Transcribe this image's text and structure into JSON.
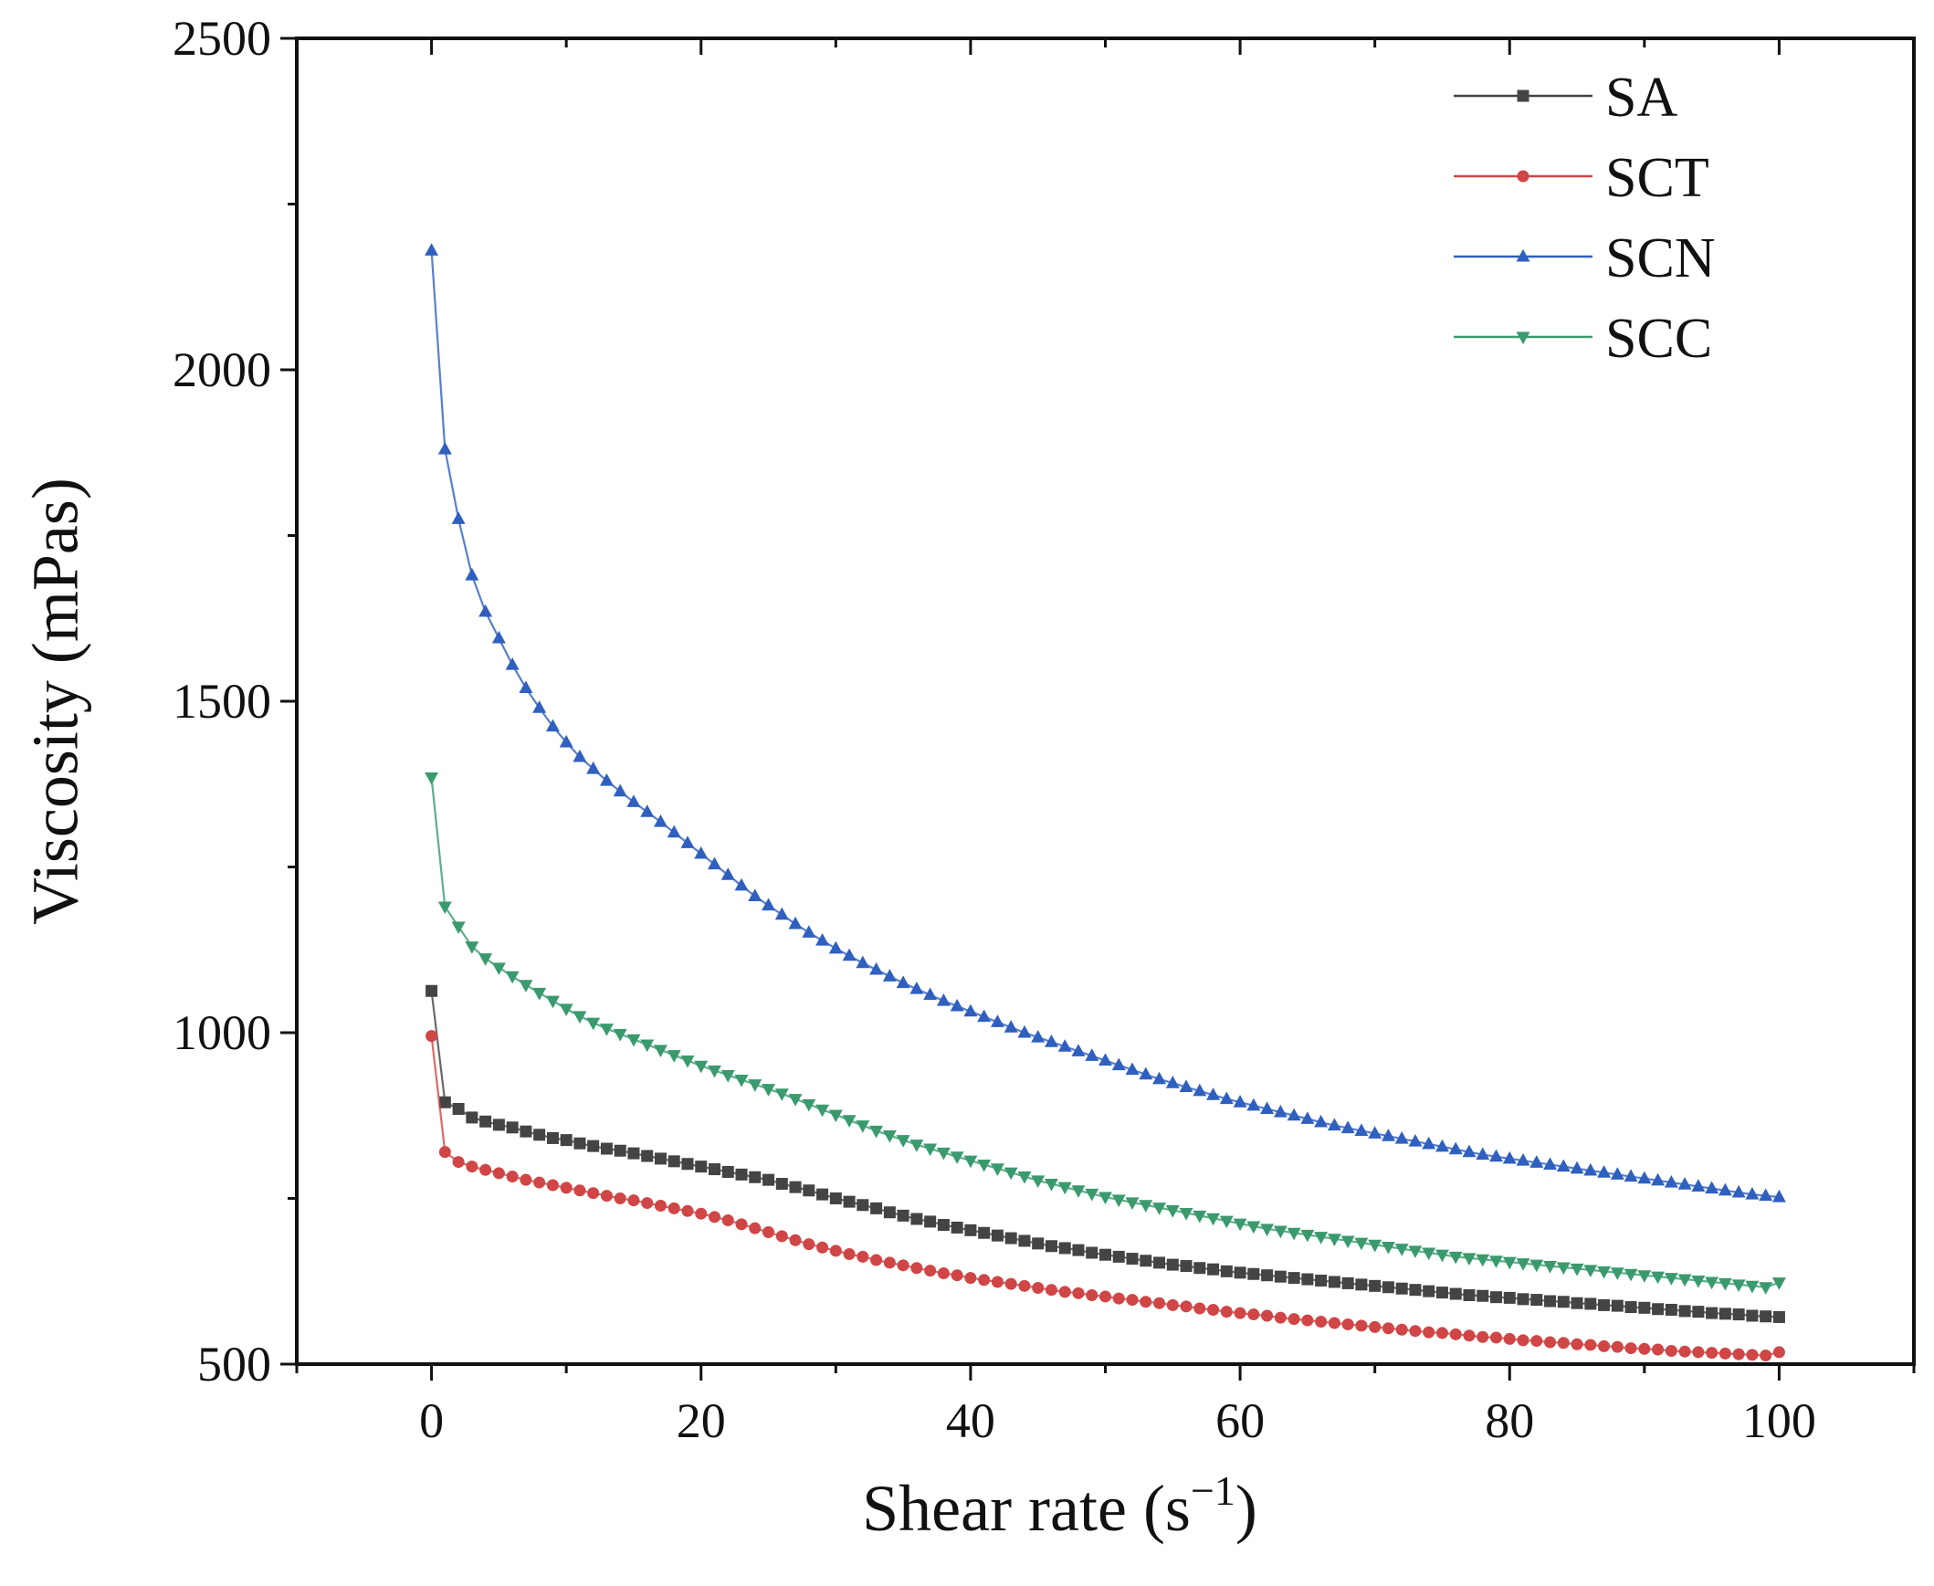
{
  "chart_data": {
    "type": "line",
    "title": "",
    "xlabel": "Shear rate (s",
    "xlabel_superscript": "−1",
    "xlabel_suffix": ")",
    "ylabel": "Viscosity (mPas)",
    "xlim": [
      -10,
      110
    ],
    "ylim": [
      500,
      2500
    ],
    "xticks": [
      0,
      20,
      40,
      60,
      80,
      100
    ],
    "yticks": [
      500,
      1000,
      1500,
      2000,
      2500
    ],
    "x": [
      0,
      1,
      2,
      3,
      4,
      5,
      6,
      7,
      8,
      9,
      10,
      11,
      12,
      13,
      14,
      15,
      16,
      17,
      18,
      19,
      20,
      21,
      22,
      23,
      24,
      25,
      26,
      27,
      28,
      29,
      30,
      31,
      32,
      33,
      34,
      35,
      36,
      37,
      38,
      39,
      40,
      41,
      42,
      43,
      44,
      45,
      46,
      47,
      48,
      49,
      50,
      51,
      52,
      53,
      54,
      55,
      56,
      57,
      58,
      59,
      60,
      61,
      62,
      63,
      64,
      65,
      66,
      67,
      68,
      69,
      70,
      71,
      72,
      73,
      74,
      75,
      76,
      77,
      78,
      79,
      80,
      81,
      82,
      83,
      84,
      85,
      86,
      87,
      88,
      89,
      90,
      91,
      92,
      93,
      94,
      95,
      96,
      97,
      98,
      99,
      100
    ],
    "series": [
      {
        "name": "SA",
        "color": "#444444",
        "marker": "square",
        "values": [
          1063,
          895,
          885,
          872,
          866,
          861,
          857,
          851,
          846,
          841,
          838,
          833,
          829,
          825,
          822,
          818,
          814,
          810,
          806,
          802,
          798,
          794,
          790,
          786,
          782,
          778,
          772,
          767,
          762,
          756,
          750,
          745,
          740,
          735,
          729,
          724,
          719,
          715,
          710,
          706,
          702,
          698,
          694,
          690,
          686,
          682,
          678,
          675,
          672,
          668,
          665,
          662,
          659,
          656,
          653,
          650,
          648,
          645,
          643,
          640,
          638,
          636,
          634,
          632,
          630,
          628,
          626,
          624,
          622,
          620,
          618,
          616,
          614,
          612,
          610,
          608,
          606,
          604,
          603,
          601,
          600,
          598,
          597,
          595,
          594,
          592,
          591,
          589,
          588,
          586,
          585,
          583,
          582,
          580,
          579,
          577,
          576,
          575,
          573,
          572,
          571
        ]
      },
      {
        "name": "SCT",
        "color": "#d04545",
        "marker": "circle",
        "values": [
          995,
          820,
          805,
          798,
          793,
          788,
          783,
          778,
          774,
          770,
          766,
          762,
          758,
          754,
          750,
          747,
          743,
          739,
          735,
          731,
          727,
          722,
          717,
          711,
          705,
          699,
          693,
          687,
          681,
          676,
          671,
          666,
          662,
          657,
          653,
          649,
          645,
          641,
          637,
          634,
          630,
          627,
          624,
          621,
          618,
          615,
          612,
          609,
          607,
          604,
          602,
          599,
          597,
          594,
          592,
          589,
          587,
          584,
          582,
          579,
          577,
          575,
          573,
          570,
          568,
          566,
          564,
          562,
          560,
          558,
          556,
          554,
          552,
          550,
          548,
          547,
          545,
          543,
          541,
          540,
          538,
          536,
          535,
          533,
          532,
          530,
          529,
          527,
          526,
          524,
          523,
          522,
          520,
          519,
          518,
          517,
          516,
          515,
          514,
          513,
          518
        ]
      },
      {
        "name": "SCN",
        "color": "#2f5fbf",
        "marker": "triangle-up",
        "values": [
          2180,
          1880,
          1775,
          1690,
          1635,
          1595,
          1555,
          1520,
          1490,
          1462,
          1438,
          1416,
          1398,
          1380,
          1364,
          1348,
          1333,
          1318,
          1302,
          1286,
          1270,
          1254,
          1238,
          1222,
          1206,
          1192,
          1178,
          1164,
          1151,
          1139,
          1127,
          1116,
          1105,
          1095,
          1085,
          1075,
          1066,
          1057,
          1048,
          1040,
          1032,
          1024,
          1016,
          1008,
          1000,
          993,
          986,
          979,
          972,
          965,
          958,
          951,
          944,
          937,
          930,
          924,
          918,
          912,
          906,
          900,
          895,
          890,
          885,
          880,
          875,
          870,
          865,
          860,
          856,
          852,
          848,
          844,
          840,
          836,
          832,
          828,
          824,
          820,
          816,
          813,
          810,
          807,
          804,
          801,
          798,
          795,
          792,
          789,
          786,
          783,
          780,
          777,
          774,
          771,
          768,
          765,
          762,
          759,
          756,
          754,
          752
        ]
      },
      {
        "name": "SCC",
        "color": "#3a9a6e",
        "marker": "triangle-down",
        "values": [
          1385,
          1190,
          1160,
          1130,
          1112,
          1098,
          1085,
          1072,
          1060,
          1048,
          1036,
          1025,
          1015,
          1006,
          998,
          990,
          982,
          974,
          966,
          958,
          950,
          943,
          936,
          929,
          922,
          915,
          908,
          900,
          892,
          884,
          876,
          868,
          860,
          852,
          845,
          838,
          831,
          825,
          819,
          813,
          807,
          801,
          795,
          789,
          783,
          777,
          772,
          767,
          762,
          757,
          752,
          748,
          744,
          740,
          736,
          732,
          728,
          724,
          720,
          716,
          712,
          708,
          704,
          701,
          698,
          695,
          692,
          689,
          686,
          683,
          680,
          677,
          674,
          671,
          668,
          665,
          662,
          660,
          658,
          656,
          654,
          652,
          650,
          648,
          646,
          644,
          642,
          640,
          638,
          636,
          634,
          632,
          630,
          628,
          626,
          624,
          622,
          620,
          618,
          616,
          623
        ]
      }
    ],
    "legend_position": "top-right",
    "grid": false
  }
}
